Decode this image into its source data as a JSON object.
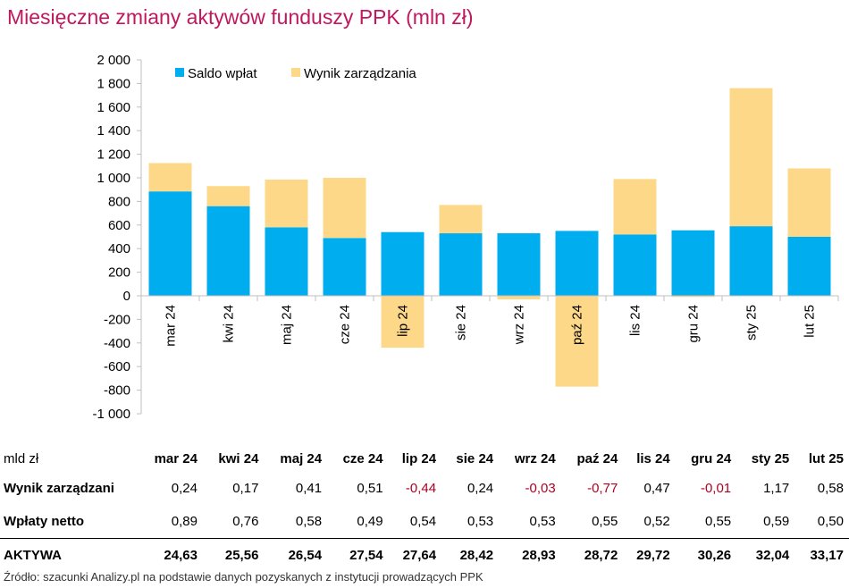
{
  "title": "Miesięczne zmiany aktywów funduszy PPK (mln zł)",
  "chart_data": {
    "type": "bar",
    "stacked": true,
    "categories": [
      "mar 24",
      "kwi 24",
      "maj 24",
      "cze 24",
      "lip 24",
      "sie 24",
      "wrz 24",
      "paź 24",
      "lis 24",
      "gru 24",
      "sty 25",
      "lut 25"
    ],
    "series": [
      {
        "name": "Saldo wpłat",
        "color": "#00aeef",
        "values": [
          885,
          760,
          580,
          490,
          540,
          530,
          530,
          550,
          520,
          555,
          590,
          500
        ]
      },
      {
        "name": "Wynik zarządzania",
        "color": "#fdd888",
        "values": [
          240,
          170,
          405,
          510,
          -440,
          240,
          -30,
          -770,
          470,
          -10,
          1170,
          580
        ]
      }
    ],
    "ylim": [
      -1000,
      2000
    ],
    "yticks": [
      2000,
      1800,
      1600,
      1400,
      1200,
      1000,
      800,
      600,
      400,
      200,
      0,
      -200,
      -400,
      -600,
      -800,
      -1000
    ],
    "ytick_labels": [
      "2 000",
      "1 800",
      "1 600",
      "1 400",
      "1 200",
      "1 000",
      "800",
      "600",
      "400",
      "200",
      "0",
      "-200",
      "-400",
      "-600",
      "-800",
      "-1 000"
    ],
    "legend_position": "top-left",
    "grid": false
  },
  "table": {
    "unit_label": "mld zł",
    "columns": [
      "mar 24",
      "kwi 24",
      "maj 24",
      "cze 24",
      "lip 24",
      "sie 24",
      "wrz 24",
      "paź 24",
      "lis 24",
      "gru 24",
      "sty 25",
      "lut 25"
    ],
    "rows": [
      {
        "label": "Wynik zarządzani",
        "values": [
          "0,24",
          "0,17",
          "0,41",
          "0,51",
          "-0,44",
          "0,24",
          "-0,03",
          "-0,77",
          "0,47",
          "-0,01",
          "1,17",
          "0,58"
        ]
      },
      {
        "label": "Wpłaty netto",
        "values": [
          "0,89",
          "0,76",
          "0,58",
          "0,49",
          "0,54",
          "0,53",
          "0,53",
          "0,55",
          "0,52",
          "0,55",
          "0,59",
          "0,50"
        ]
      },
      {
        "label": "AKTYWA",
        "values": [
          "24,63",
          "25,56",
          "26,54",
          "27,54",
          "27,64",
          "28,42",
          "28,93",
          "28,72",
          "29,72",
          "30,26",
          "32,04",
          "33,17"
        ]
      }
    ]
  },
  "source": "Źródło: szacunki Analizy.pl na podstawie danych pozyskanych z instytucji prowadzących PPK"
}
